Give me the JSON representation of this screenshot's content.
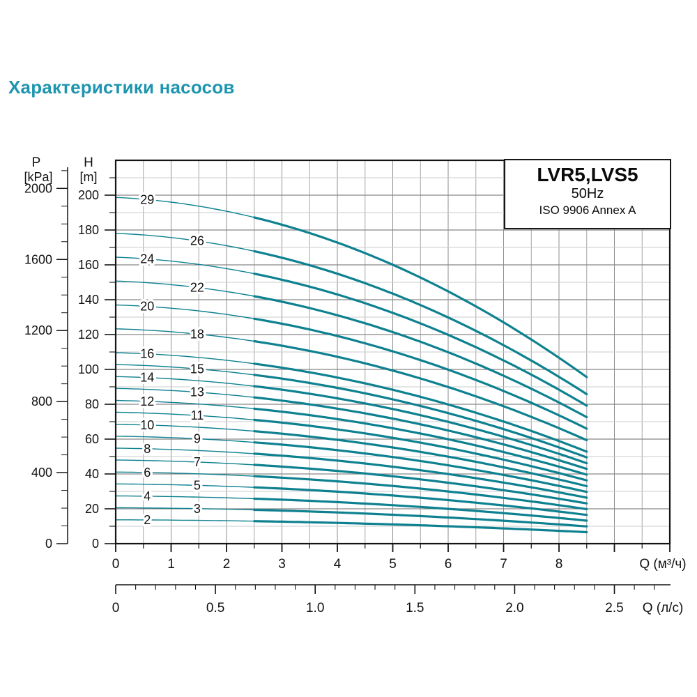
{
  "page": {
    "title": "Характеристики насосов"
  },
  "colors": {
    "accent": "#1d95af",
    "curve": "#0e8190",
    "grid_major": "#878787",
    "grid_minor": "#c9cccd",
    "grid_vert_major": "#8e8e8e",
    "grid_vert_minor": "#a6a6a6",
    "axis": "#141414"
  },
  "legend": {
    "title": "LVR5,LVS5",
    "frequency": "50Hz",
    "standard": "ISO 9906 Annex A"
  },
  "axes": {
    "pressure": {
      "name": "P",
      "unit": "[kPa]",
      "ticks": [
        2000,
        1600,
        1200,
        800,
        400,
        0
      ],
      "label_step": 400,
      "minor_step": 100,
      "axis_max": 2100
    },
    "head": {
      "name": "H",
      "unit": "[m]",
      "ticks": [
        200,
        180,
        160,
        140,
        120,
        100,
        80,
        60,
        40,
        20,
        0
      ],
      "label_step": 20,
      "minor_step": 10,
      "axis_max": 210
    },
    "flow_m3h": {
      "label": "Q (м³/ч)",
      "ticks": [
        0,
        1,
        2,
        3,
        4,
        5,
        6,
        7,
        8
      ],
      "minor_step": 0.5,
      "axis_max": 10
    },
    "flow_ls": {
      "label": "Q (л/с)",
      "tick_labels": [
        "0",
        "0.5",
        "1.0",
        "1.5",
        "2.0",
        "2.5"
      ],
      "tick_values": [
        0,
        0.5,
        1,
        1.5,
        2,
        2.5
      ],
      "minor_step": 0.1,
      "axis_max": 2.78
    }
  },
  "chart_data": {
    "type": "line",
    "title": "LVR5,LVS5 50Hz ISO 9906 Annex A",
    "xlabel": "Q (м³/ч)",
    "x2label": "Q (л/с)",
    "ylabel": "H [m]",
    "y2label": "P [kPa]",
    "x_range": [
      0,
      10
    ],
    "y_range": [
      0,
      220
    ],
    "q_start": 0,
    "q_end": 8.5,
    "bold_from_q": 2.5,
    "kpa_per_m": 9.81,
    "grid": true,
    "legend_position": "top-right",
    "per_stage_head": {
      "h0": 6.85,
      "lin": 0.05,
      "quad": 0.0433
    },
    "series": [
      {
        "stages": 29,
        "label": "29",
        "h_start_m": 198.7,
        "h_end_m": 95.6,
        "label_q": 0.57
      },
      {
        "stages": 26,
        "label": "26",
        "h_start_m": 178.1,
        "h_end_m": 85.8,
        "label_q": 1.47
      },
      {
        "stages": 24,
        "label": "24",
        "h_start_m": 164.4,
        "h_end_m": 79.2,
        "label_q": 0.57
      },
      {
        "stages": 22,
        "label": "22",
        "h_start_m": 150.7,
        "h_end_m": 72.6,
        "label_q": 1.47
      },
      {
        "stages": 20,
        "label": "20",
        "h_start_m": 137.0,
        "h_end_m": 66.0,
        "label_q": 0.57
      },
      {
        "stages": 18,
        "label": "18",
        "h_start_m": 123.3,
        "h_end_m": 59.4,
        "label_q": 1.47
      },
      {
        "stages": 16,
        "label": "16",
        "h_start_m": 109.6,
        "h_end_m": 52.8,
        "label_q": 0.57
      },
      {
        "stages": 15,
        "label": "15",
        "h_start_m": 102.8,
        "h_end_m": 49.5,
        "label_q": 1.47
      },
      {
        "stages": 14,
        "label": "14",
        "h_start_m": 95.9,
        "h_end_m": 46.2,
        "label_q": 0.57
      },
      {
        "stages": 13,
        "label": "13",
        "h_start_m": 89.1,
        "h_end_m": 42.9,
        "label_q": 1.47
      },
      {
        "stages": 12,
        "label": "12",
        "h_start_m": 82.2,
        "h_end_m": 39.6,
        "label_q": 0.57
      },
      {
        "stages": 11,
        "label": "11",
        "h_start_m": 75.4,
        "h_end_m": 36.3,
        "label_q": 1.47
      },
      {
        "stages": 10,
        "label": "10",
        "h_start_m": 68.5,
        "h_end_m": 33.0,
        "label_q": 0.57
      },
      {
        "stages": 9,
        "label": "9",
        "h_start_m": 61.7,
        "h_end_m": 29.7,
        "label_q": 1.47
      },
      {
        "stages": 8,
        "label": "8",
        "h_start_m": 54.8,
        "h_end_m": 26.4,
        "label_q": 0.57
      },
      {
        "stages": 7,
        "label": "7",
        "h_start_m": 48.0,
        "h_end_m": 23.1,
        "label_q": 1.47
      },
      {
        "stages": 6,
        "label": "6",
        "h_start_m": 41.1,
        "h_end_m": 19.8,
        "label_q": 0.57
      },
      {
        "stages": 5,
        "label": "5",
        "h_start_m": 34.3,
        "h_end_m": 16.5,
        "label_q": 1.47
      },
      {
        "stages": 4,
        "label": "4",
        "h_start_m": 27.4,
        "h_end_m": 13.2,
        "label_q": 0.57
      },
      {
        "stages": 3,
        "label": "3",
        "h_start_m": 20.6,
        "h_end_m": 9.9,
        "label_q": 1.47
      },
      {
        "stages": 2,
        "label": "2",
        "h_start_m": 13.7,
        "h_end_m": 6.6,
        "label_q": 0.57
      }
    ]
  }
}
